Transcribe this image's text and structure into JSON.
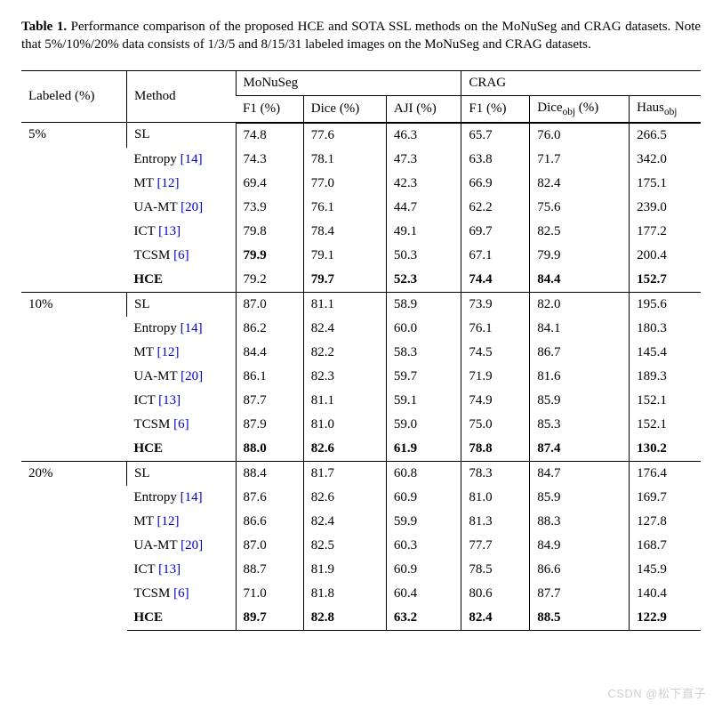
{
  "caption": {
    "label": "Table 1.",
    "text": "Performance comparison of the proposed HCE and SOTA SSL methods on the MoNuSeg and CRAG datasets. Note that 5%/10%/20% data consists of 1/3/5 and 8/15/31 labeled images on the MoNuSeg and CRAG datasets."
  },
  "headers": {
    "labeled": "Labeled (%)",
    "method": "Method",
    "monuseg": "MoNuSeg",
    "crag": "CRAG",
    "f1": "F1 (%)",
    "dice": "Dice (%)",
    "aji": "AJI (%)",
    "f1_2": "F1 (%)",
    "dice_obj_prefix": "Dice",
    "dice_obj_sub": "obj",
    "dice_obj_suffix": " (%)",
    "haus_prefix": "Haus",
    "haus_sub": "obj"
  },
  "methods": {
    "sl": {
      "name": "SL",
      "cite": ""
    },
    "entropy": {
      "name": "Entropy ",
      "cite": "[14]"
    },
    "mt": {
      "name": "MT ",
      "cite": "[12]"
    },
    "uamt": {
      "name": "UA-MT ",
      "cite": "[20]"
    },
    "ict": {
      "name": "ICT ",
      "cite": "[13]"
    },
    "tcsm": {
      "name": "TCSM ",
      "cite": "[6]"
    },
    "hce": {
      "name": "HCE",
      "cite": ""
    }
  },
  "groups": [
    {
      "label": "5%",
      "rows": [
        {
          "m": "sl",
          "v": [
            "74.8",
            "77.6",
            "46.3",
            "65.7",
            "76.0",
            "266.5"
          ],
          "b": [
            0,
            0,
            0,
            0,
            0,
            0
          ]
        },
        {
          "m": "entropy",
          "v": [
            "74.3",
            "78.1",
            "47.3",
            "63.8",
            "71.7",
            "342.0"
          ],
          "b": [
            0,
            0,
            0,
            0,
            0,
            0
          ]
        },
        {
          "m": "mt",
          "v": [
            "69.4",
            "77.0",
            "42.3",
            "66.9",
            "82.4",
            "175.1"
          ],
          "b": [
            0,
            0,
            0,
            0,
            0,
            0
          ]
        },
        {
          "m": "uamt",
          "v": [
            "73.9",
            "76.1",
            "44.7",
            "62.2",
            "75.6",
            "239.0"
          ],
          "b": [
            0,
            0,
            0,
            0,
            0,
            0
          ]
        },
        {
          "m": "ict",
          "v": [
            "79.8",
            "78.4",
            "49.1",
            "69.7",
            "82.5",
            "177.2"
          ],
          "b": [
            0,
            0,
            0,
            0,
            0,
            0
          ]
        },
        {
          "m": "tcsm",
          "v": [
            "79.9",
            "79.1",
            "50.3",
            "67.1",
            "79.9",
            "200.4"
          ],
          "b": [
            1,
            0,
            0,
            0,
            0,
            0
          ]
        },
        {
          "m": "hce",
          "v": [
            "79.2",
            "79.7",
            "52.3",
            "74.4",
            "84.4",
            "152.7"
          ],
          "b": [
            0,
            1,
            1,
            1,
            1,
            1
          ],
          "mb": 1
        }
      ]
    },
    {
      "label": "10%",
      "rows": [
        {
          "m": "sl",
          "v": [
            "87.0",
            "81.1",
            "58.9",
            "73.9",
            "82.0",
            "195.6"
          ],
          "b": [
            0,
            0,
            0,
            0,
            0,
            0
          ]
        },
        {
          "m": "entropy",
          "v": [
            "86.2",
            "82.4",
            "60.0",
            "76.1",
            "84.1",
            "180.3"
          ],
          "b": [
            0,
            0,
            0,
            0,
            0,
            0
          ]
        },
        {
          "m": "mt",
          "v": [
            "84.4",
            "82.2",
            "58.3",
            "74.5",
            "86.7",
            "145.4"
          ],
          "b": [
            0,
            0,
            0,
            0,
            0,
            0
          ]
        },
        {
          "m": "uamt",
          "v": [
            "86.1",
            "82.3",
            "59.7",
            "71.9",
            "81.6",
            "189.3"
          ],
          "b": [
            0,
            0,
            0,
            0,
            0,
            0
          ]
        },
        {
          "m": "ict",
          "v": [
            "87.7",
            "81.1",
            "59.1",
            "74.9",
            "85.9",
            "152.1"
          ],
          "b": [
            0,
            0,
            0,
            0,
            0,
            0
          ]
        },
        {
          "m": "tcsm",
          "v": [
            "87.9",
            "81.0",
            "59.0",
            "75.0",
            "85.3",
            "152.1"
          ],
          "b": [
            0,
            0,
            0,
            0,
            0,
            0
          ]
        },
        {
          "m": "hce",
          "v": [
            "88.0",
            "82.6",
            "61.9",
            "78.8",
            "87.4",
            "130.2"
          ],
          "b": [
            1,
            1,
            1,
            1,
            1,
            1
          ],
          "mb": 1
        }
      ]
    },
    {
      "label": "20%",
      "rows": [
        {
          "m": "sl",
          "v": [
            "88.4",
            "81.7",
            "60.8",
            "78.3",
            "84.7",
            "176.4"
          ],
          "b": [
            0,
            0,
            0,
            0,
            0,
            0
          ]
        },
        {
          "m": "entropy",
          "v": [
            "87.6",
            "82.6",
            "60.9",
            "81.0",
            "85.9",
            "169.7"
          ],
          "b": [
            0,
            0,
            0,
            0,
            0,
            0
          ]
        },
        {
          "m": "mt",
          "v": [
            "86.6",
            "82.4",
            "59.9",
            "81.3",
            "88.3",
            "127.8"
          ],
          "b": [
            0,
            0,
            0,
            0,
            0,
            0
          ]
        },
        {
          "m": "uamt",
          "v": [
            "87.0",
            "82.5",
            "60.3",
            "77.7",
            "84.9",
            "168.7"
          ],
          "b": [
            0,
            0,
            0,
            0,
            0,
            0
          ]
        },
        {
          "m": "ict",
          "v": [
            "88.7",
            "81.9",
            "60.9",
            "78.5",
            "86.6",
            "145.9"
          ],
          "b": [
            0,
            0,
            0,
            0,
            0,
            0
          ]
        },
        {
          "m": "tcsm",
          "v": [
            "71.0",
            "81.8",
            "60.4",
            "80.6",
            "87.7",
            "140.4"
          ],
          "b": [
            0,
            0,
            0,
            0,
            0,
            0
          ]
        },
        {
          "m": "hce",
          "v": [
            "89.7",
            "82.8",
            "63.2",
            "82.4",
            "88.5",
            "122.9"
          ],
          "b": [
            1,
            1,
            1,
            1,
            1,
            1
          ],
          "mb": 1
        }
      ]
    }
  ],
  "watermark": "CSDN @松下直子",
  "colors": {
    "cite": "#0000cc",
    "text": "#000000",
    "bg": "#ffffff",
    "watermark": "#d0d0d0"
  }
}
